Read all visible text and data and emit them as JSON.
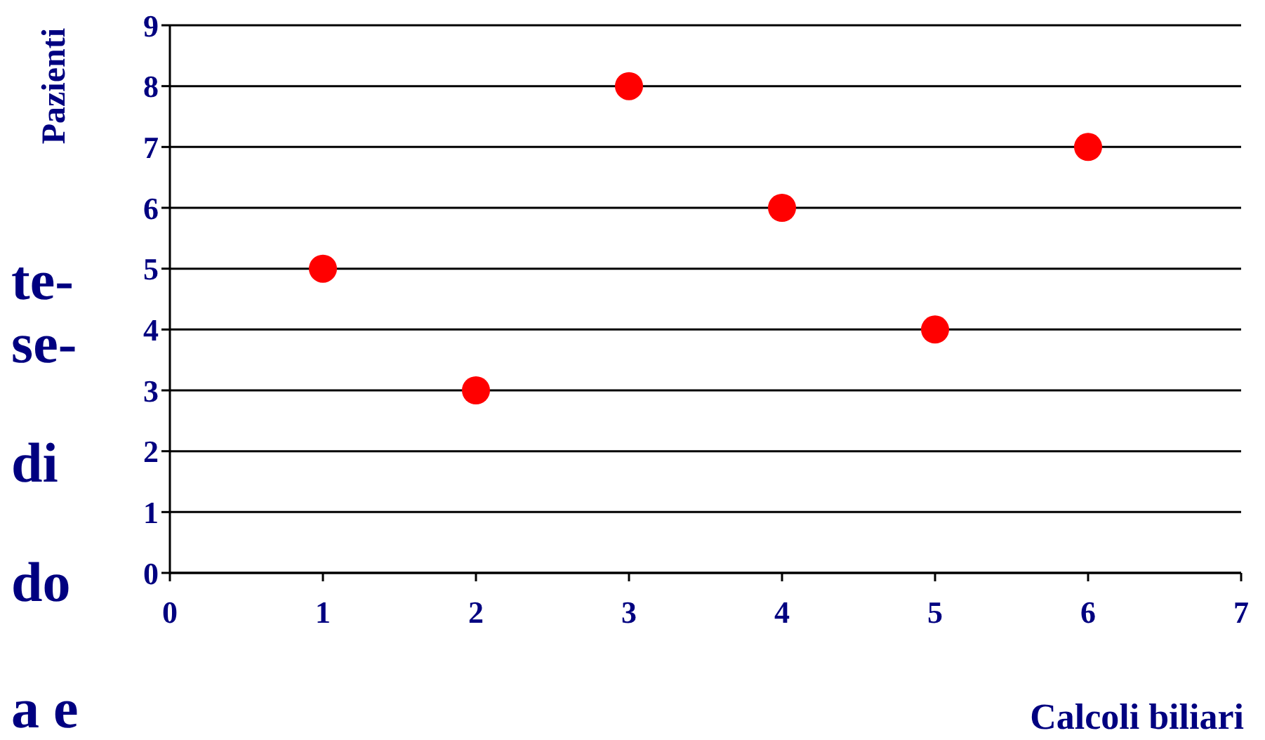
{
  "chart_data": {
    "type": "scatter",
    "xlabel": "Calcoli biliari",
    "ylabel": "Pazienti",
    "annotations": [
      "te-",
      "se-",
      "di",
      "do",
      "a e"
    ],
    "x": [
      1,
      2,
      3,
      4,
      5,
      6
    ],
    "series": [
      {
        "color": "#ff0000",
        "values": [
          5,
          3,
          8,
          6,
          4,
          7
        ]
      }
    ],
    "xlim": [
      0,
      7
    ],
    "ylim": [
      0,
      9
    ],
    "xticks": [
      0,
      1,
      2,
      3,
      4,
      5,
      6,
      7
    ],
    "yticks": [
      0,
      1,
      2,
      3,
      4,
      5,
      6,
      7,
      8,
      9
    ],
    "grid": "y",
    "marker": "circle"
  }
}
